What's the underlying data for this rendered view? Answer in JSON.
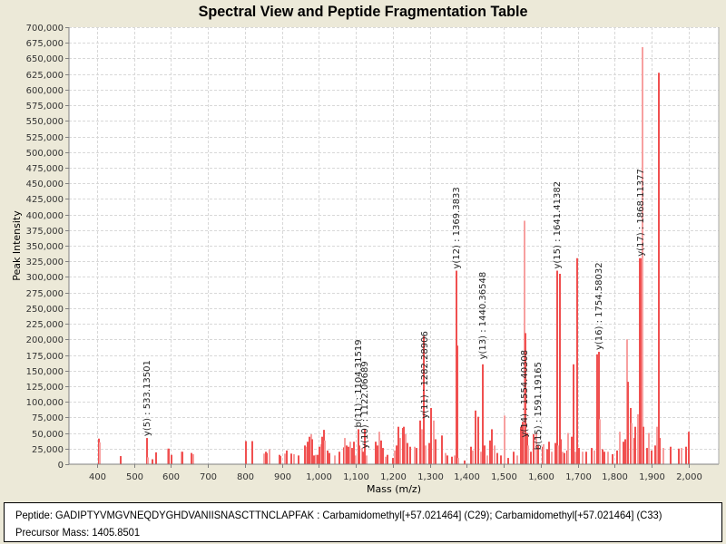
{
  "header": {
    "title": "Spectral View and Peptide Fragmentation Table"
  },
  "info": {
    "peptide_line": "Peptide: GADIPTYVMGVNEQDYGHDVANIISNASCTTNCLAPFAK : Carbamidomethyl[+57.021464] (C29); Carbamidomethyl[+57.021464] (C33)",
    "precursor_line": "Precursor Mass: 1405.8501"
  },
  "chart_data": {
    "type": "bar",
    "title": "Spectral View and Peptide Fragmentation Table",
    "xlabel": "Mass (m/z)",
    "ylabel": "Peak Intensity",
    "xlim": [
      324,
      2081
    ],
    "ylim": [
      0,
      700000
    ],
    "xticks": [
      400,
      500,
      600,
      700,
      800,
      900,
      1000,
      1100,
      1200,
      1300,
      1400,
      1500,
      1600,
      1700,
      1800,
      1900,
      2000
    ],
    "xtick_labels": [
      "400",
      "500",
      "600",
      "700",
      "800",
      "900",
      "1,000",
      "1,100",
      "1,200",
      "1,300",
      "1,400",
      "1,500",
      "1,600",
      "1,700",
      "1,800",
      "1,900",
      "2,000"
    ],
    "yticks": [
      0,
      25000,
      50000,
      75000,
      100000,
      125000,
      150000,
      175000,
      200000,
      225000,
      250000,
      275000,
      300000,
      325000,
      350000,
      375000,
      400000,
      425000,
      450000,
      475000,
      500000,
      525000,
      550000,
      575000,
      600000,
      625000,
      650000,
      675000,
      700000
    ],
    "ytick_labels": [
      "0",
      "25,000",
      "50,000",
      "75,000",
      "100,000",
      "125,000",
      "150,000",
      "175,000",
      "200,000",
      "225,000",
      "250,000",
      "275,000",
      "300,000",
      "325,000",
      "350,000",
      "375,000",
      "400,000",
      "425,000",
      "450,000",
      "475,000",
      "500,000",
      "525,000",
      "550,000",
      "575,000",
      "600,000",
      "625,000",
      "650,000",
      "675,000",
      "700,000"
    ],
    "grid": true,
    "colors": {
      "peak": "#f05050",
      "peak_light": "#f7a0a0"
    },
    "peaks": [
      [
        403,
        41000
      ],
      [
        406,
        35000
      ],
      [
        462,
        13000
      ],
      [
        533,
        42000
      ],
      [
        535,
        11000
      ],
      [
        548,
        8000
      ],
      [
        556,
        19000
      ],
      [
        588,
        25000
      ],
      [
        591,
        25000
      ],
      [
        598,
        15000
      ],
      [
        626,
        20000
      ],
      [
        628,
        20000
      ],
      [
        653,
        18000
      ],
      [
        657,
        16000
      ],
      [
        800,
        37000
      ],
      [
        818,
        37000
      ],
      [
        848,
        17000
      ],
      [
        854,
        20000
      ],
      [
        857,
        18000
      ],
      [
        864,
        24000
      ],
      [
        892,
        15000
      ],
      [
        894,
        13000
      ],
      [
        905,
        17000
      ],
      [
        911,
        22000
      ],
      [
        922,
        17000
      ],
      [
        930,
        16000
      ],
      [
        942,
        14000
      ],
      [
        960,
        30000
      ],
      [
        964,
        28000
      ],
      [
        968,
        36000
      ],
      [
        972,
        44000
      ],
      [
        976,
        48000
      ],
      [
        980,
        40000
      ],
      [
        985,
        14000
      ],
      [
        990,
        15000
      ],
      [
        995,
        15000
      ],
      [
        1000,
        28000
      ],
      [
        1003,
        32000
      ],
      [
        1007,
        44000
      ],
      [
        1010,
        55000
      ],
      [
        1014,
        38000
      ],
      [
        1020,
        22000
      ],
      [
        1025,
        18000
      ],
      [
        1040,
        14000
      ],
      [
        1053,
        20000
      ],
      [
        1064,
        27000
      ],
      [
        1068,
        42000
      ],
      [
        1073,
        30000
      ],
      [
        1078,
        28000
      ],
      [
        1082,
        36000
      ],
      [
        1086,
        26000
      ],
      [
        1092,
        36000
      ],
      [
        1098,
        14000
      ],
      [
        1104,
        56000
      ],
      [
        1108,
        30000
      ],
      [
        1113,
        26000
      ],
      [
        1117,
        20000
      ],
      [
        1122,
        56000
      ],
      [
        1126,
        14000
      ],
      [
        1152,
        36000
      ],
      [
        1157,
        30000
      ],
      [
        1162,
        52000
      ],
      [
        1166,
        38000
      ],
      [
        1170,
        26000
      ],
      [
        1178,
        12000
      ],
      [
        1184,
        15000
      ],
      [
        1197,
        10000
      ],
      [
        1202,
        22000
      ],
      [
        1207,
        30000
      ],
      [
        1212,
        60000
      ],
      [
        1218,
        42000
      ],
      [
        1224,
        58000
      ],
      [
        1228,
        60000
      ],
      [
        1232,
        48000
      ],
      [
        1238,
        34000
      ],
      [
        1244,
        28000
      ],
      [
        1256,
        28000
      ],
      [
        1262,
        26000
      ],
      [
        1270,
        70000
      ],
      [
        1276,
        56000
      ],
      [
        1280,
        40000
      ],
      [
        1282,
        205000
      ],
      [
        1286,
        30000
      ],
      [
        1296,
        34000
      ],
      [
        1300,
        90000
      ],
      [
        1308,
        70000
      ],
      [
        1314,
        40000
      ],
      [
        1330,
        46000
      ],
      [
        1340,
        18000
      ],
      [
        1346,
        14000
      ],
      [
        1358,
        12000
      ],
      [
        1365,
        14000
      ],
      [
        1369,
        310000
      ],
      [
        1372,
        190000
      ],
      [
        1375,
        10000
      ],
      [
        1392,
        6000
      ],
      [
        1408,
        28000
      ],
      [
        1413,
        22000
      ],
      [
        1420,
        86000
      ],
      [
        1428,
        76000
      ],
      [
        1436,
        20000
      ],
      [
        1440,
        160000
      ],
      [
        1445,
        30000
      ],
      [
        1452,
        14000
      ],
      [
        1460,
        38000
      ],
      [
        1466,
        56000
      ],
      [
        1472,
        30000
      ],
      [
        1480,
        18000
      ],
      [
        1490,
        14000
      ],
      [
        1500,
        78000
      ],
      [
        1510,
        10000
      ],
      [
        1525,
        20000
      ],
      [
        1535,
        14000
      ],
      [
        1544,
        60000
      ],
      [
        1548,
        68000
      ],
      [
        1554,
        390000
      ],
      [
        1556,
        210000
      ],
      [
        1560,
        50000
      ],
      [
        1564,
        30000
      ],
      [
        1570,
        20000
      ],
      [
        1578,
        48000
      ],
      [
        1585,
        50000
      ],
      [
        1591,
        30000
      ],
      [
        1602,
        28000
      ],
      [
        1606,
        32000
      ],
      [
        1614,
        24000
      ],
      [
        1620,
        36000
      ],
      [
        1628,
        20000
      ],
      [
        1636,
        34000
      ],
      [
        1641,
        310000
      ],
      [
        1645,
        30000
      ],
      [
        1648,
        305000
      ],
      [
        1652,
        40000
      ],
      [
        1656,
        20000
      ],
      [
        1662,
        18000
      ],
      [
        1668,
        22000
      ],
      [
        1672,
        50000
      ],
      [
        1680,
        44000
      ],
      [
        1686,
        160000
      ],
      [
        1690,
        20000
      ],
      [
        1696,
        330000
      ],
      [
        1700,
        26000
      ],
      [
        1710,
        20000
      ],
      [
        1720,
        20000
      ],
      [
        1736,
        26000
      ],
      [
        1742,
        22000
      ],
      [
        1750,
        176000
      ],
      [
        1754,
        180000
      ],
      [
        1758,
        72000
      ],
      [
        1764,
        24000
      ],
      [
        1770,
        20000
      ],
      [
        1778,
        20000
      ],
      [
        1792,
        16000
      ],
      [
        1804,
        22000
      ],
      [
        1812,
        52000
      ],
      [
        1820,
        36000
      ],
      [
        1826,
        40000
      ],
      [
        1830,
        200000
      ],
      [
        1834,
        132000
      ],
      [
        1840,
        90000
      ],
      [
        1844,
        66000
      ],
      [
        1850,
        42000
      ],
      [
        1854,
        60000
      ],
      [
        1860,
        80000
      ],
      [
        1865,
        330000
      ],
      [
        1868,
        330000
      ],
      [
        1872,
        668000
      ],
      [
        1876,
        60000
      ],
      [
        1884,
        26000
      ],
      [
        1890,
        50000
      ],
      [
        1897,
        22000
      ],
      [
        1906,
        30000
      ],
      [
        1912,
        60000
      ],
      [
        1916,
        627000
      ],
      [
        1920,
        42000
      ],
      [
        1928,
        26000
      ],
      [
        1948,
        28000
      ],
      [
        1970,
        25000
      ],
      [
        1978,
        26000
      ],
      [
        1990,
        28000
      ],
      [
        1998,
        52000
      ]
    ],
    "annotations": [
      {
        "label": "y(5) : 533.13501",
        "mz": 533.13501,
        "intensity": 42000
      },
      {
        "label": "b(11) : 1104.31519",
        "mz": 1104.31519,
        "intensity": 56000
      },
      {
        "label": "y(10) : 1122.06689",
        "mz": 1122.06689,
        "intensity": 22000
      },
      {
        "label": "y(11) : 1282.28906",
        "mz": 1282.28906,
        "intensity": 70000
      },
      {
        "label": "y(12) : 1369.3833",
        "mz": 1369.3833,
        "intensity": 310000
      },
      {
        "label": "y(13) : 1440.36548",
        "mz": 1440.36548,
        "intensity": 165000
      },
      {
        "label": "y(14) : 1554.40308",
        "mz": 1554.40308,
        "intensity": 40000
      },
      {
        "label": "b(15) : 1591.19165",
        "mz": 1591.19165,
        "intensity": 20000
      },
      {
        "label": "y(15) : 1641.41382",
        "mz": 1641.41382,
        "intensity": 310000
      },
      {
        "label": "y(16) : 1754.58032",
        "mz": 1754.58032,
        "intensity": 180000
      },
      {
        "label": "y(17) : 1868.11377",
        "mz": 1868.11377,
        "intensity": 330000
      }
    ]
  }
}
